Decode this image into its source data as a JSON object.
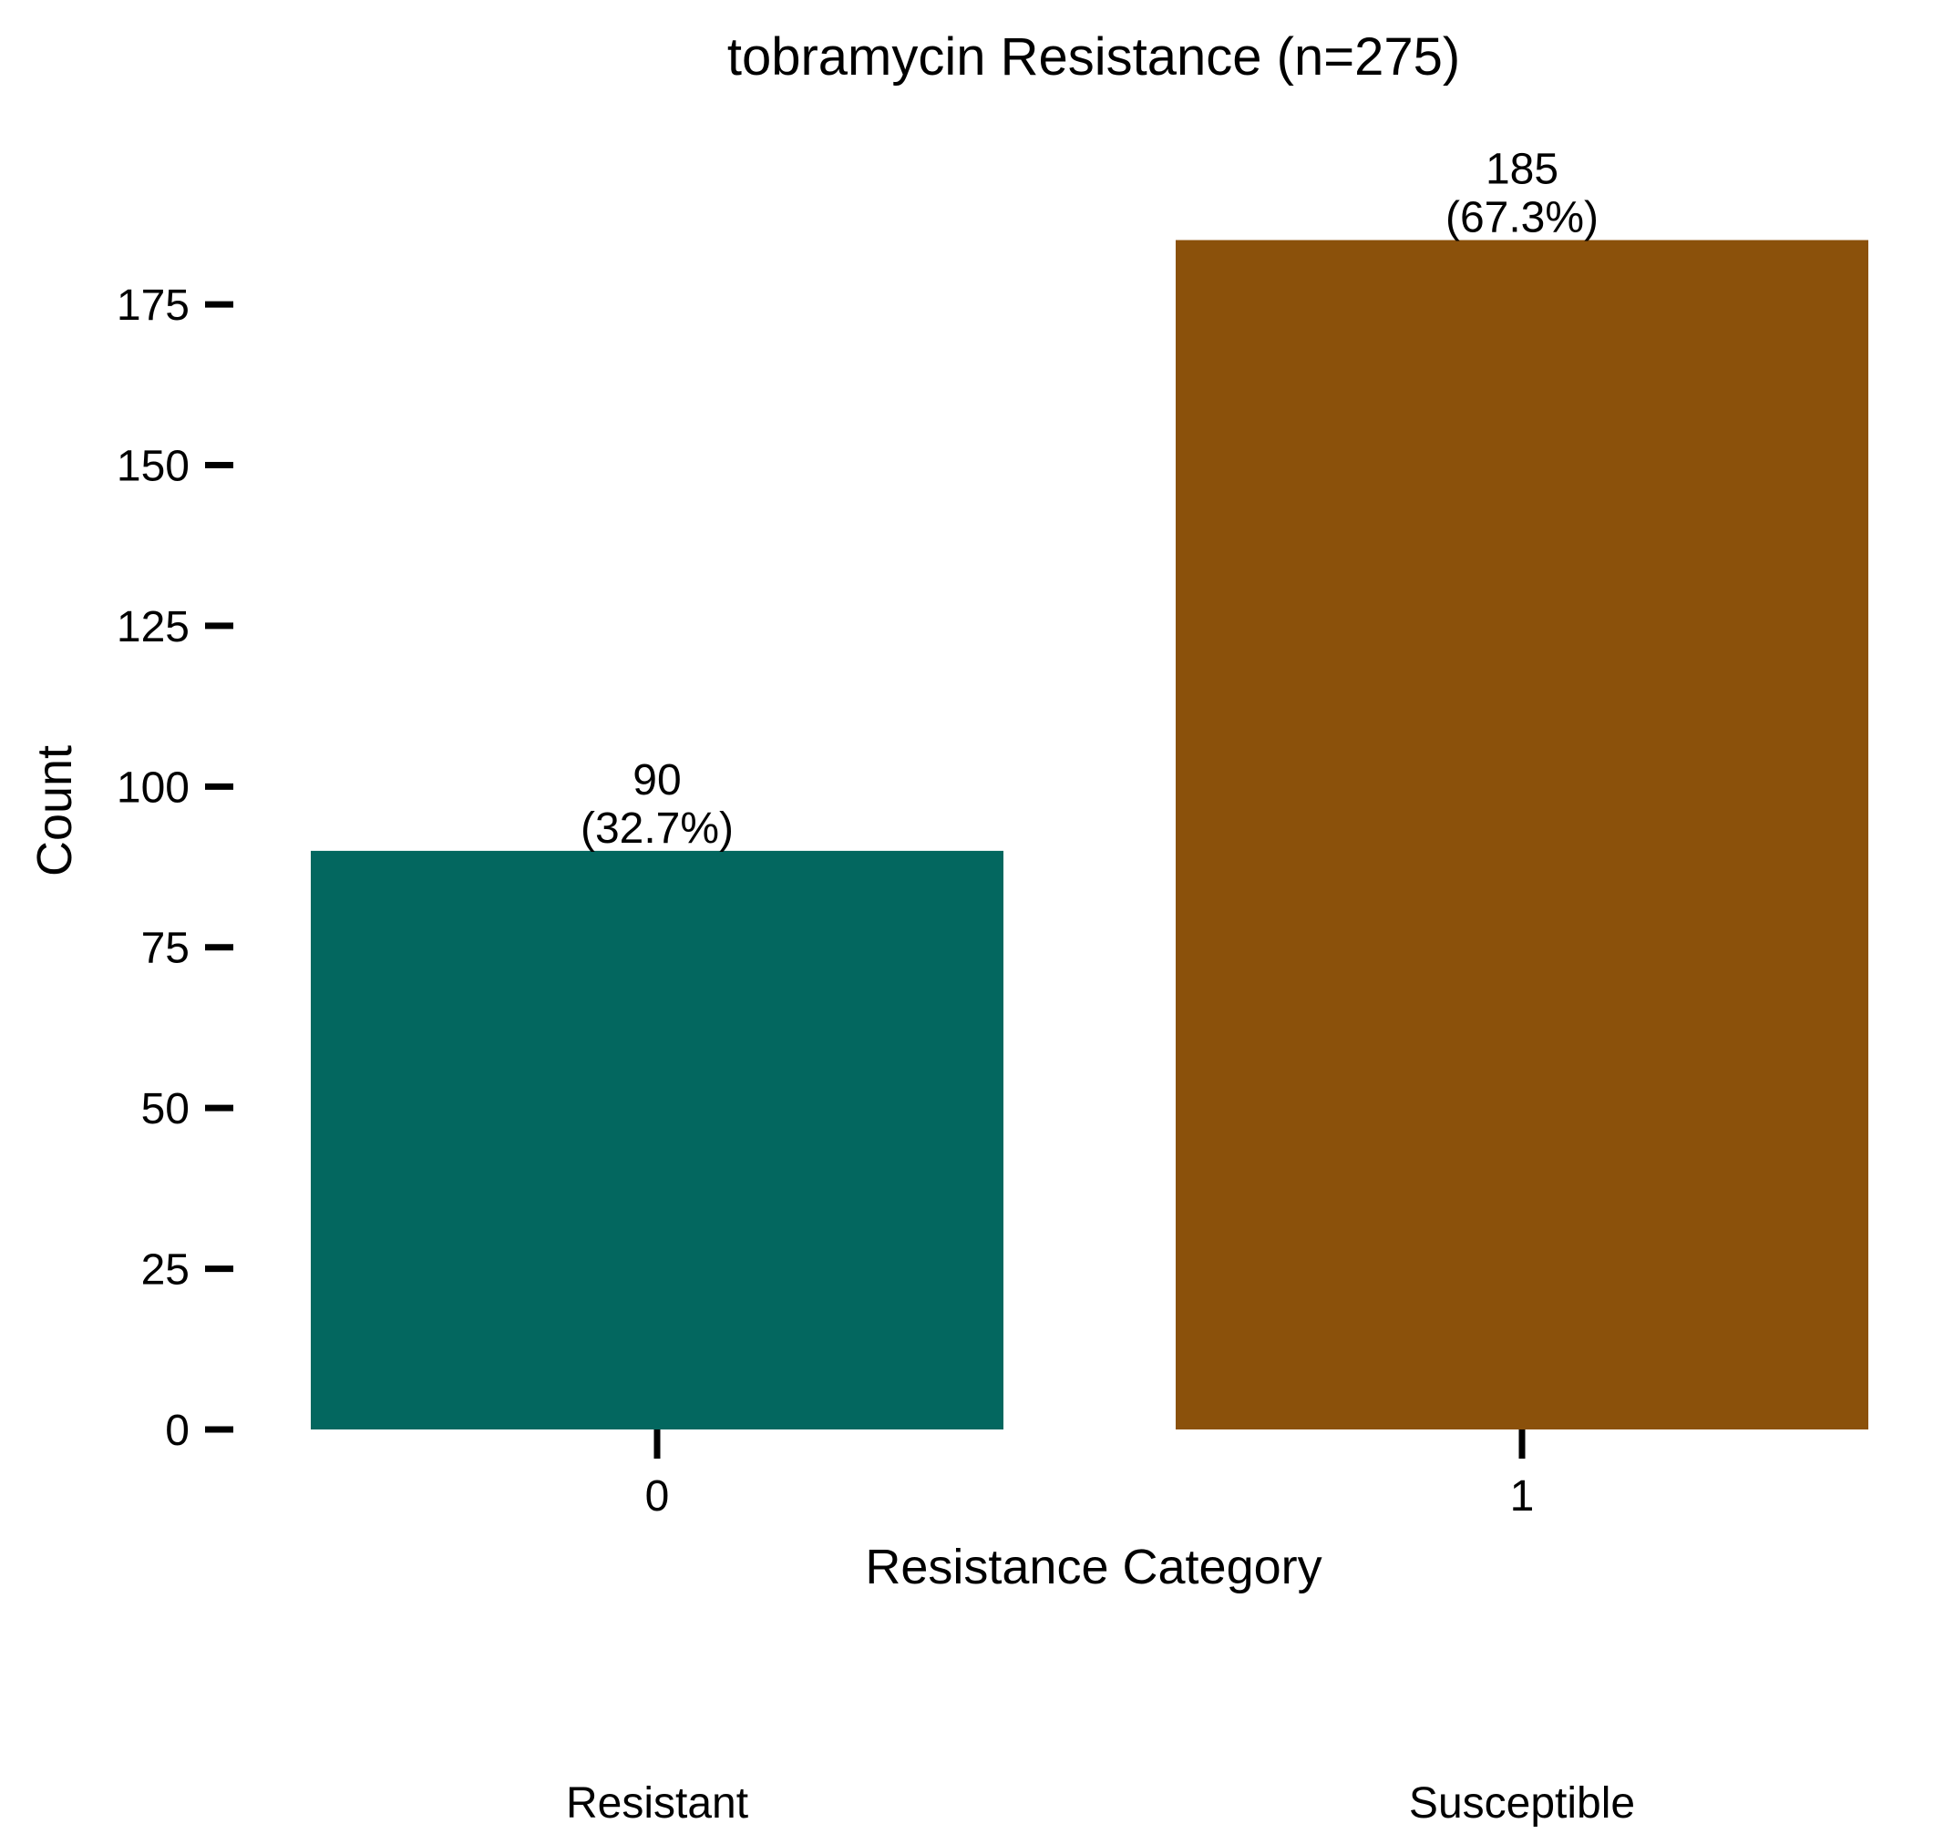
{
  "chart_data": {
    "type": "bar",
    "title": "tobramycin Resistance (n=275)",
    "xlabel": "Resistance Category",
    "ylabel": "Count",
    "categories": [
      "0",
      "1"
    ],
    "category_names": [
      "Resistant",
      "Susceptible"
    ],
    "values": [
      90,
      185
    ],
    "bar_labels": [
      {
        "count": "90",
        "percent": "(32.7%)"
      },
      {
        "count": "185",
        "percent": "(67.3%)"
      }
    ],
    "colors": [
      "#03675f",
      "#8b510b"
    ],
    "yticks": [
      0,
      25,
      50,
      75,
      100,
      125,
      150,
      175
    ],
    "ylim": [
      0,
      194
    ],
    "grid": false,
    "legend": "none"
  }
}
